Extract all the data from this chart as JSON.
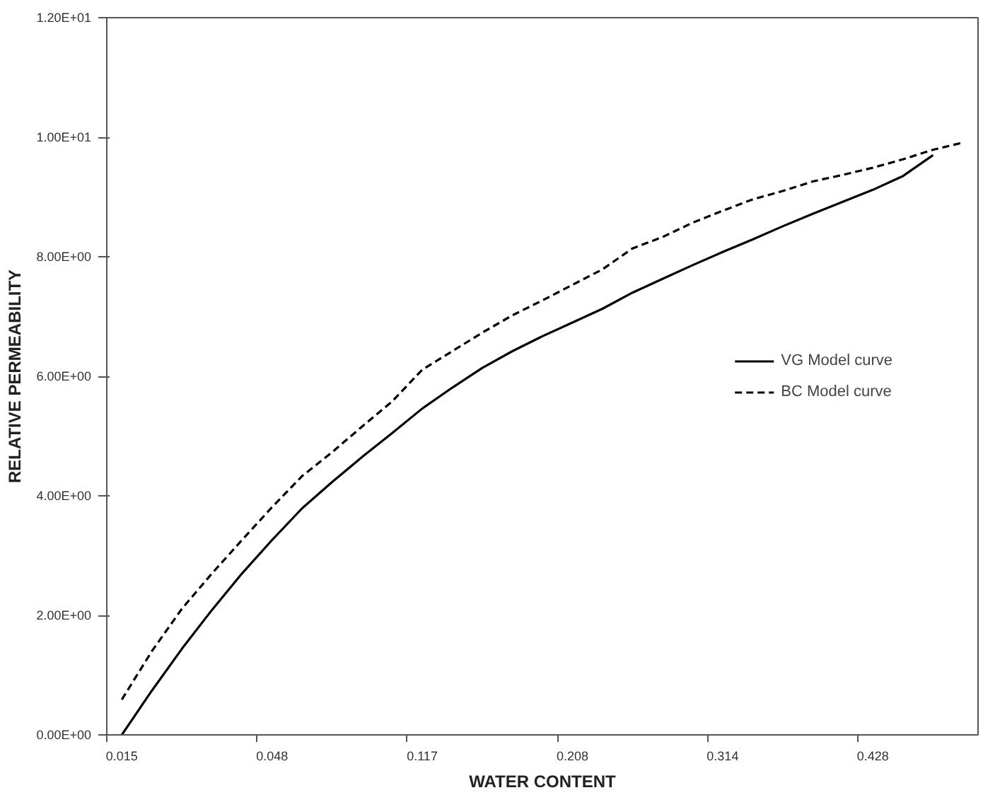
{
  "chart_data": {
    "type": "line",
    "xlabel": "WATER CONTENT",
    "ylabel": "RELATIVE PERMEABILITY",
    "categories": [
      "0.015",
      null,
      null,
      null,
      null,
      "0.048",
      null,
      null,
      null,
      null,
      "0.117",
      null,
      null,
      null,
      null,
      "0.208",
      null,
      null,
      null,
      null,
      "0.314",
      null,
      null,
      null,
      null,
      "0.428",
      null,
      null,
      null
    ],
    "series": [
      {
        "name": "VG Model curve",
        "color": "#000000",
        "line_style": "solid",
        "values": [
          0,
          0.74,
          1.44,
          2.09,
          2.7,
          3.26,
          3.79,
          4.23,
          4.65,
          5.05,
          5.46,
          5.81,
          6.14,
          6.42,
          6.67,
          6.9,
          7.13,
          7.4,
          7.63,
          7.86,
          8.08,
          8.29,
          8.51,
          8.72,
          8.92,
          9.12,
          9.35,
          9.7,
          null
        ]
      },
      {
        "name": "BC Model curve",
        "color": "#000000",
        "line_style": "dashed",
        "values": [
          0.59,
          1.4,
          2.11,
          2.7,
          3.26,
          3.81,
          4.33,
          4.73,
          5.16,
          5.58,
          6.11,
          6.42,
          6.73,
          7.02,
          7.27,
          7.53,
          7.79,
          8.14,
          8.33,
          8.57,
          8.77,
          8.96,
          9.1,
          9.26,
          9.37,
          9.49,
          9.63,
          9.79,
          9.91
        ]
      }
    ],
    "ylim": [
      0,
      12
    ],
    "yticks": [
      {
        "value": 0,
        "label": "0.00E+00"
      },
      {
        "value": 2,
        "label": "2.00E+00"
      },
      {
        "value": 4,
        "label": "4.00E+00"
      },
      {
        "value": 6,
        "label": "6.00E+00"
      },
      {
        "value": 8,
        "label": "8.00E+00"
      },
      {
        "value": 10,
        "label": "1.00E+01"
      },
      {
        "value": 12,
        "label": "1.20E+01"
      }
    ],
    "grid": false,
    "legend": "right",
    "marker": "none"
  }
}
